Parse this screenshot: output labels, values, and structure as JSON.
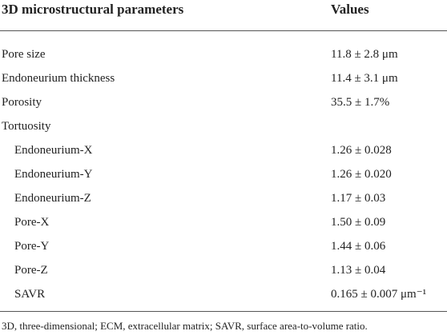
{
  "table": {
    "header": [
      "3D microstructural parameters",
      "Values"
    ],
    "rows": [
      {
        "label": "Pore size",
        "value": "11.8 ± 2.8 μm"
      },
      {
        "label": "Endoneurium thickness",
        "value": "11.4 ± 3.1 μm"
      },
      {
        "label": "Porosity",
        "value": "35.5 ± 1.7%"
      },
      {
        "label": "Tortuosity",
        "subrows": [
          {
            "label": "Endoneurium-X",
            "value": "1.26 ± 0.028"
          },
          {
            "label": "Endoneurium-Y",
            "value": "1.26 ± 0.020"
          },
          {
            "label": "Endoneurium-Z",
            "value": "1.17 ± 0.03"
          },
          {
            "label": "Pore-X",
            "value": "1.50 ± 0.09"
          },
          {
            "label": "Pore-Y",
            "value": "1.44 ± 0.06"
          },
          {
            "label": "Pore-Z",
            "value": "1.13 ± 0.04"
          },
          {
            "label": "SAVR",
            "value": "0.165 ± 0.007 μm⁻¹"
          }
        ]
      }
    ],
    "footnote": "3D, three-dimensional; ECM, extracellular matrix; SAVR, surface area-to-volume ratio."
  }
}
